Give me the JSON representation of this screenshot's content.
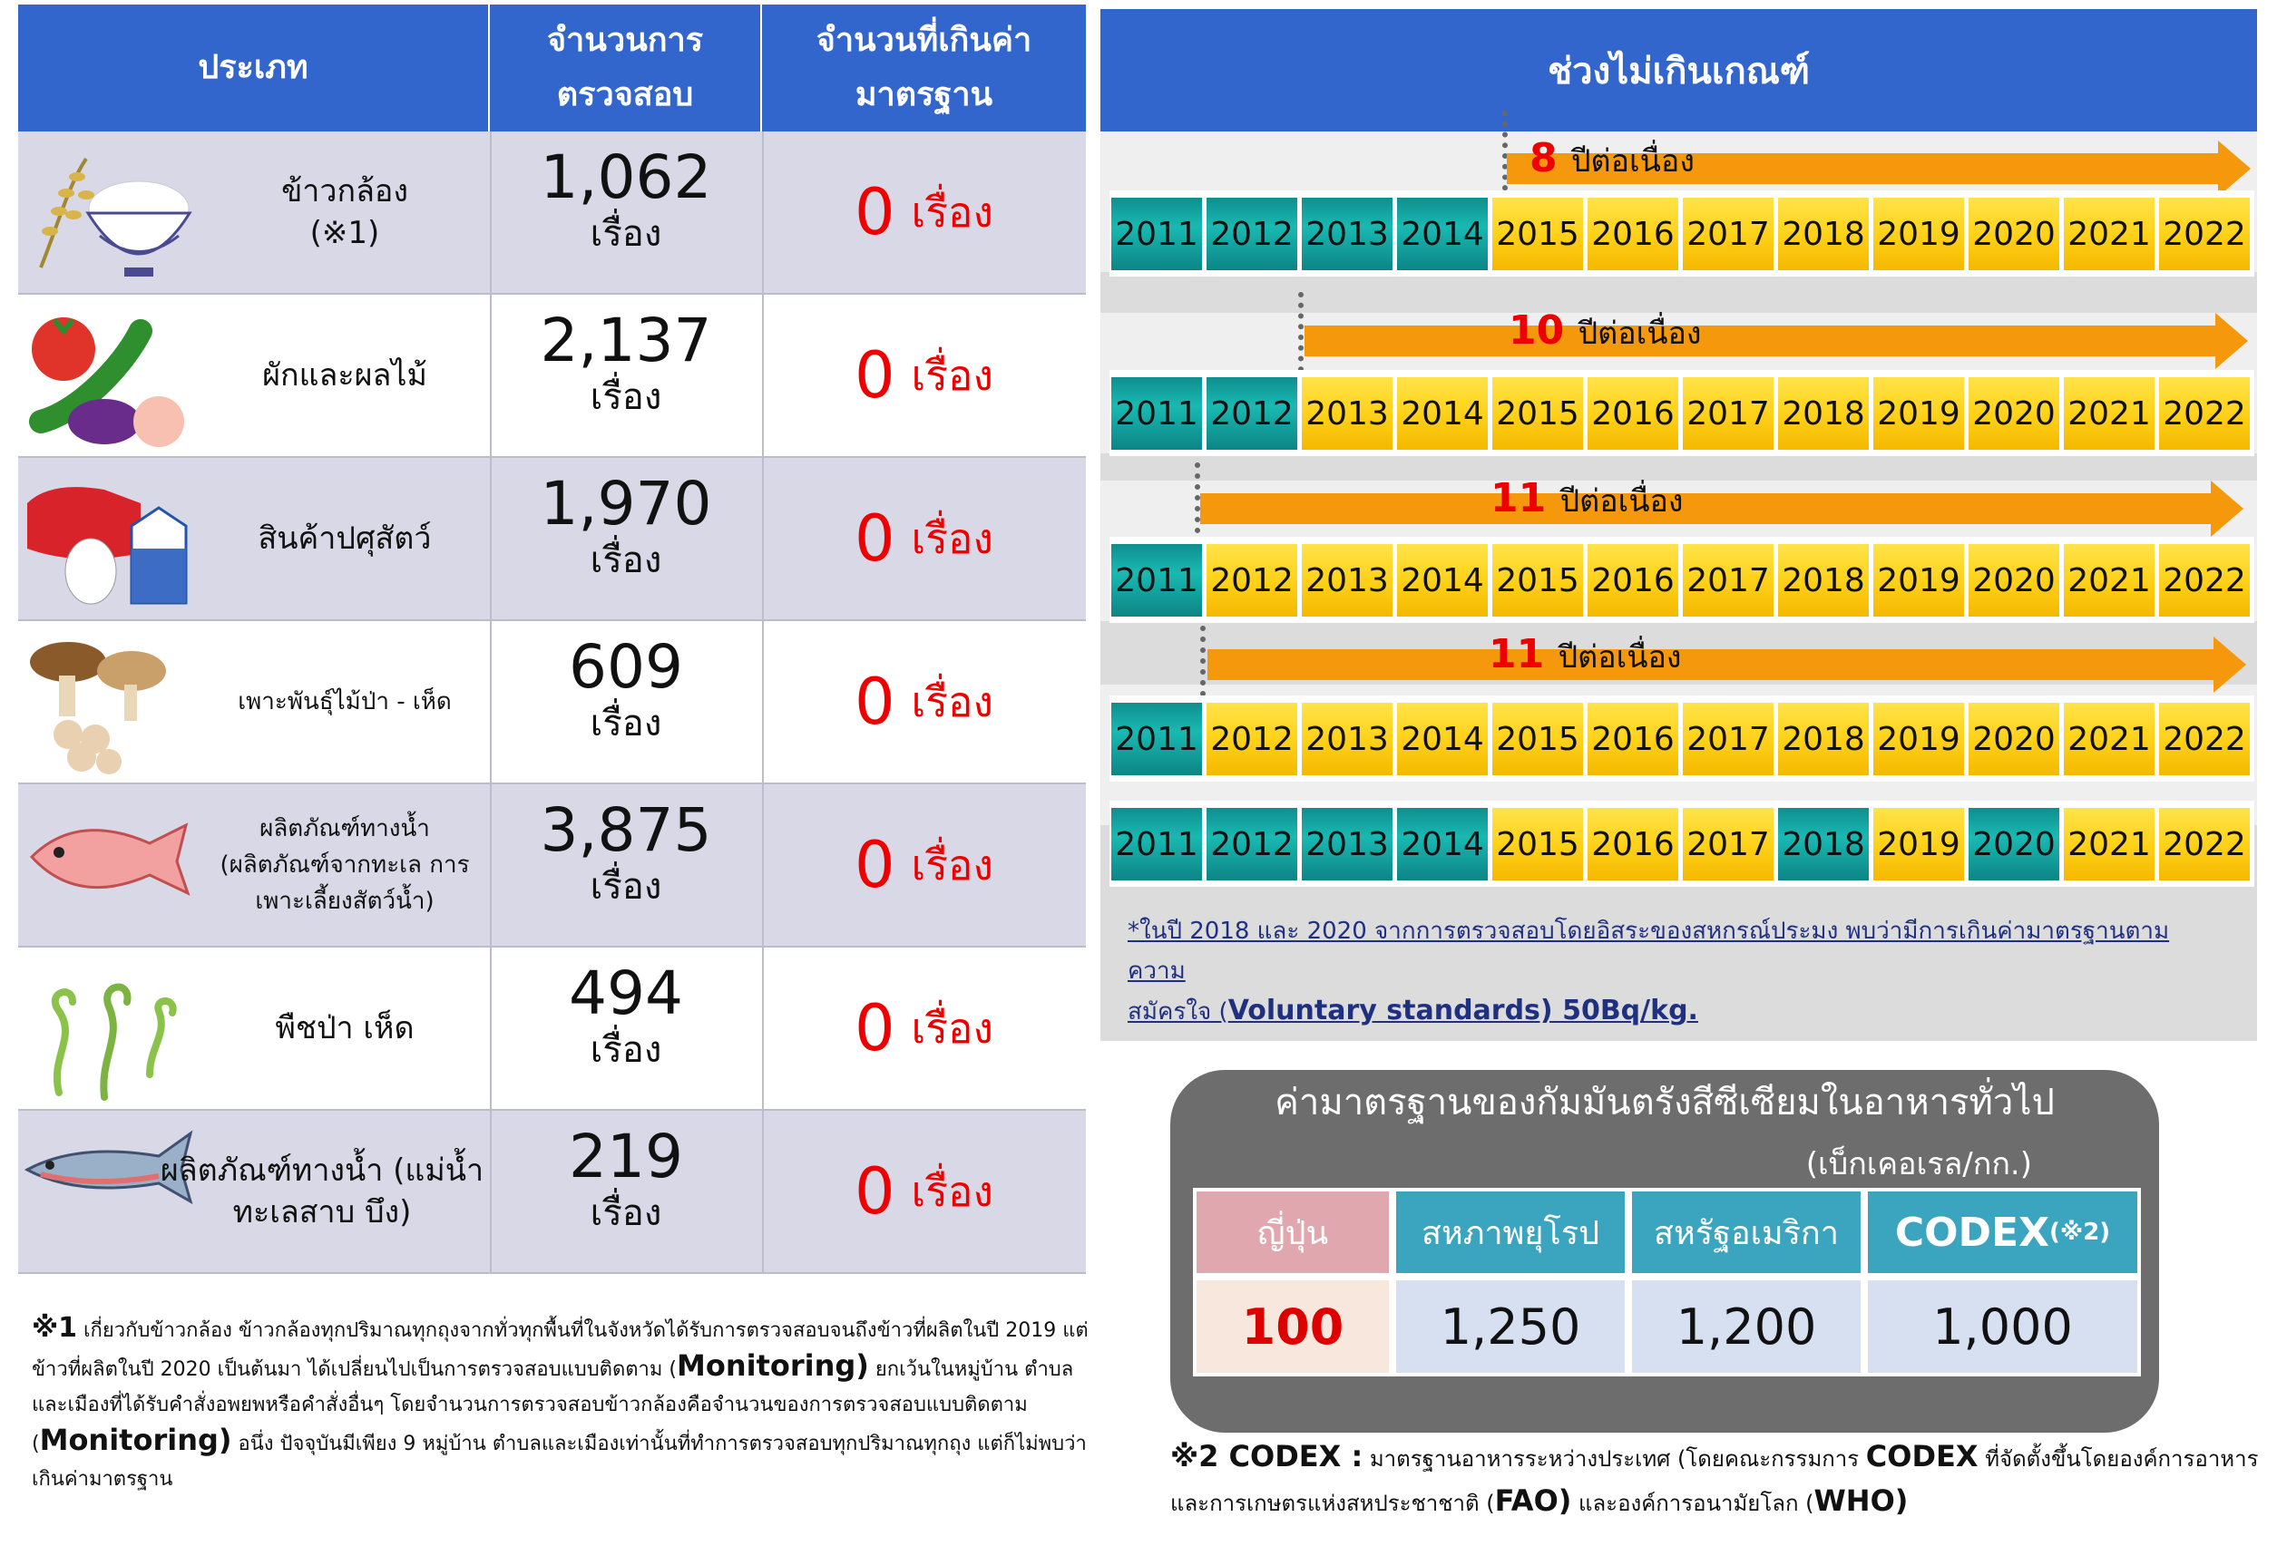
{
  "table": {
    "headers": [
      "ประเภท",
      "จำนวนการ\nตรวจสอบ",
      "จำนวนที่เกินค่า\nมาตรฐาน"
    ],
    "rows": [
      {
        "category": "ข้าวกล้อง\n(※1)",
        "count": "1,062",
        "count_unit": "เรื่อง",
        "exceed": "0",
        "exceed_unit": "เรื่อง",
        "icon": "rice-bowl-icon"
      },
      {
        "category": "ผักและผลไม้",
        "count": "2,137",
        "count_unit": "เรื่อง",
        "exceed": "0",
        "exceed_unit": "เรื่อง",
        "icon": "vegetables-icon"
      },
      {
        "category": "สินค้าปศุสัตว์",
        "count": "1,970",
        "count_unit": "เรื่อง",
        "exceed": "0",
        "exceed_unit": "เรื่อง",
        "icon": "meat-egg-milk-icon"
      },
      {
        "category": "เพาะพันธุ์ไม้ป่า - เห็ด",
        "count": "609",
        "count_unit": "เรื่อง",
        "exceed": "0",
        "exceed_unit": "เรื่อง",
        "icon": "mushroom-icon"
      },
      {
        "category": "ผลิตภัณฑ์ทางน้ำ\n(ผลิตภัณฑ์จากทะเล การ\nเพาะเลี้ยงสัตว์น้ำ)",
        "count": "3,875",
        "count_unit": "เรื่อง",
        "exceed": "0",
        "exceed_unit": "เรื่อง",
        "icon": "sea-bream-icon"
      },
      {
        "category": "พืชป่า เห็ด",
        "count": "494",
        "count_unit": "เรื่อง",
        "exceed": "0",
        "exceed_unit": "เรื่อง",
        "icon": "fern-icon"
      },
      {
        "category": "ผลิตภัณฑ์ทางน้ำ (แม่น้ำ\nทะเลสาบ บึง)",
        "count": "219",
        "count_unit": "เรื่อง",
        "exceed": "0",
        "exceed_unit": "เรื่อง",
        "icon": "salmon-icon"
      }
    ]
  },
  "timeline": {
    "title": "ช่วงไม่เกินเกณฑ์",
    "rows": [
      {
        "arrow_number": "8",
        "arrow_suffix": "ปีต่อเนื่อง",
        "years": [
          "2011",
          "2012",
          "2013",
          "2014",
          "2015",
          "2016",
          "2017",
          "2018",
          "2019",
          "2020",
          "2021",
          "2022"
        ],
        "teal_count": 4
      },
      {
        "arrow_number": "10",
        "arrow_suffix": "ปีต่อเนื่อง",
        "years": [
          "2011",
          "2012",
          "2013",
          "2014",
          "2015",
          "2016",
          "2017",
          "2018",
          "2019",
          "2020",
          "2021",
          "2022"
        ],
        "teal_count": 2
      },
      {
        "arrow_number": "11",
        "arrow_suffix": "ปีต่อเนื่อง",
        "years": [
          "2011",
          "2012",
          "2013",
          "2014",
          "2015",
          "2016",
          "2017",
          "2018",
          "2019",
          "2020",
          "2021",
          "2022"
        ],
        "teal_count": 1
      },
      {
        "arrow_number": "11",
        "arrow_suffix": "ปีต่อเนื่อง",
        "years": [
          "2011",
          "2012",
          "2013",
          "2014",
          "2015",
          "2016",
          "2017",
          "2018",
          "2019",
          "2020",
          "2021",
          "2022"
        ],
        "teal_count": 1
      },
      {
        "arrow_number": "",
        "arrow_suffix": "",
        "years": [
          "2011",
          "2012",
          "2013",
          "2014",
          "2015",
          "2016",
          "2017",
          "2018",
          "2019",
          "2020",
          "2021",
          "2022"
        ],
        "teal_years": [
          "2011",
          "2012",
          "2013",
          "2014",
          "2018",
          "2020"
        ]
      }
    ],
    "note_prefix": "*ในปี 2018 และ 2020 จากการตรวจสอบโดยอิสระของสหกรณ์ประมง พบว่ามีการเกินค่ามาตรฐานตามความ",
    "note_line2": "สมัครใจ (",
    "note_bold": "Voluntary standards) 50Bq/kg."
  },
  "standards": {
    "title": "ค่ามาตรฐานของกัมมันตรังสีซีเซียมในอาหารทั่วไป",
    "unit": "(เบ็กเคอเรล/กก.)",
    "columns": [
      "ญี่ปุ่น",
      "สหภาพยุโรป",
      "สหรัฐอเมริกา",
      "CODEX"
    ],
    "codex_note": "(※2)",
    "values": [
      "100",
      "1,250",
      "1,200",
      "1,000"
    ]
  },
  "footnote1": {
    "marker": "※1",
    "text_a": " เกี่ยวกับข้าวกล้อง ข้าวกล้องทุกปริมาณทุกถุงจากทั่วทุกพื้นที่ในจังหวัดได้รับการตรวจสอบจนถึงข้าวที่ผลิตในปี 2019 แต่ข้าวที่ผลิตในปี 2020 เป็นต้นมา ได้เปลี่ยนไปเป็นการตรวจสอบแบบติดตาม (",
    "em1": "Monitoring)",
    "text_b": " ยกเว้นในหมู่บ้าน ตำบลและเมืองที่ได้รับคำสั่งอพยพหรือคำสั่งอื่นๆ โดยจำนวนการตรวจสอบข้าวกล้องคือจำนวนของการตรวจสอบแบบติดตาม (",
    "em2": "Monitoring)",
    "text_c": " อนึ่ง ปัจจุบันมีเพียง 9 หมู่บ้าน ตำบลและเมืองเท่านั้นที่ทำการตรวจสอบทุกปริมาณทุกถุง แต่ก็ไม่พบว่าเกินค่ามาตรฐาน"
  },
  "footnote2": {
    "marker": "※2 CODEX :",
    "text_a": " มาตรฐานอาหารระหว่างประเทศ (โดยคณะกรรมการ ",
    "em1": "CODEX",
    "text_b": " ที่จัดตั้งขึ้นโดยองค์การอาหารและการเกษตรแห่งสหประชาชาติ (",
    "em2": "FAO)",
    "text_c": " และองค์การอนามัยโลก (",
    "em3": "WHO)"
  }
}
